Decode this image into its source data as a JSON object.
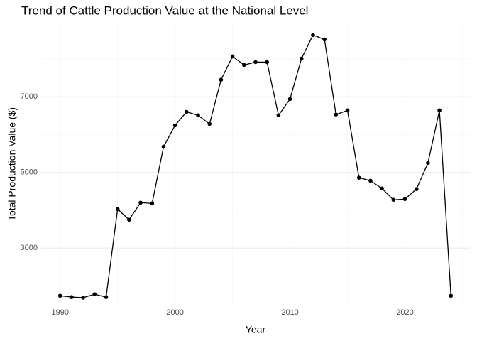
{
  "chart_data": {
    "type": "line",
    "title": "Trend of Cattle Production Value at the National Level",
    "x_label": "Year",
    "y_label": "Total Production Value ($)",
    "x": [
      1990,
      1991,
      1992,
      1993,
      1994,
      1995,
      1996,
      1997,
      1998,
      1999,
      2000,
      2001,
      2002,
      2003,
      2004,
      2005,
      2006,
      2007,
      2008,
      2009,
      2010,
      2011,
      2012,
      2013,
      2014,
      2015,
      2016,
      2017,
      2018,
      2019,
      2020,
      2021,
      2022,
      2023,
      2024
    ],
    "series": [
      {
        "name": "Total Production Value",
        "color": "#000000",
        "values": [
          1740,
          1705,
          1690,
          1780,
          1705,
          4030,
          3750,
          4200,
          4180,
          5680,
          6245,
          6600,
          6510,
          6280,
          7450,
          8065,
          7840,
          7915,
          7915,
          6510,
          6940,
          8010,
          8630,
          8515,
          6530,
          6640,
          4860,
          4780,
          4575,
          4275,
          4295,
          4560,
          5250,
          6640,
          1740
        ]
      }
    ],
    "xlim": [
      1988.35,
      2025.65
    ],
    "ylim": [
      1520,
      8900
    ],
    "xticks": [
      1990,
      2000,
      2010,
      2020
    ],
    "yticks": [
      3000,
      5000,
      7000
    ],
    "grid": true
  }
}
